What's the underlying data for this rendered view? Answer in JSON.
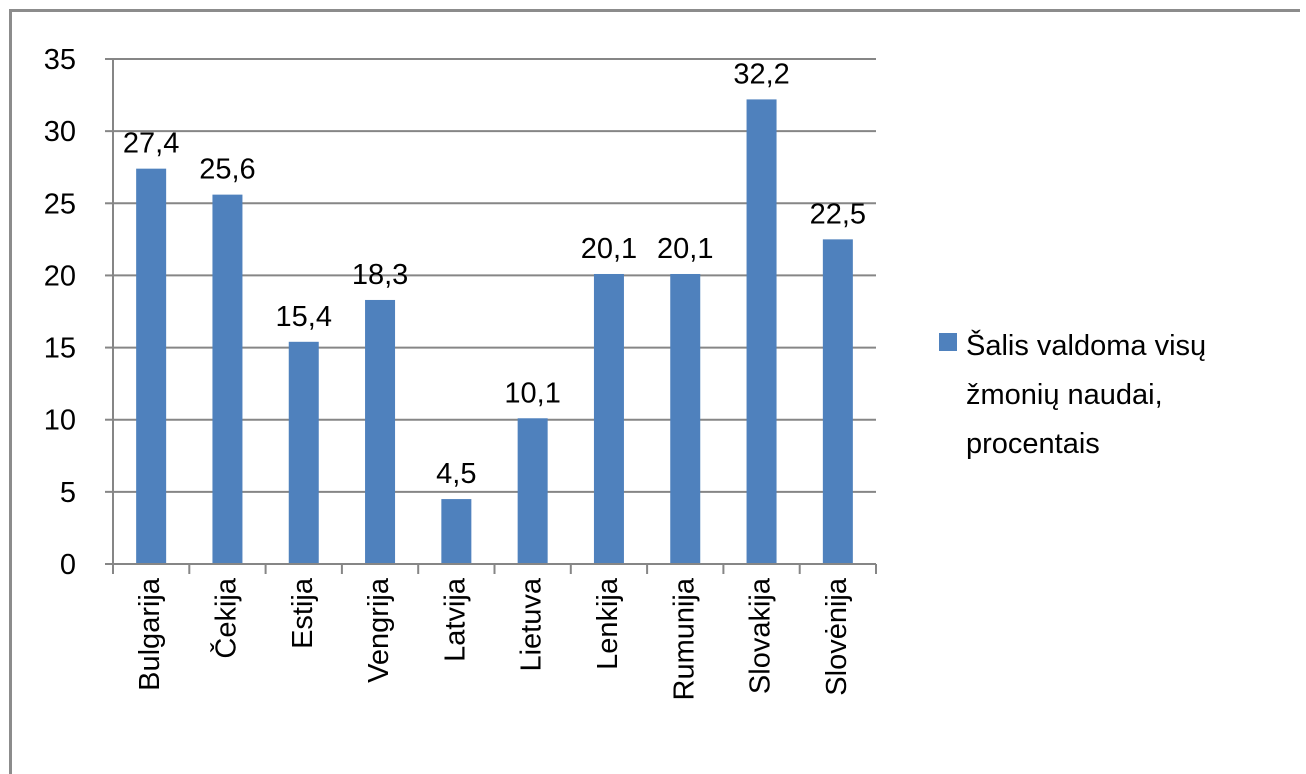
{
  "chart_data": {
    "type": "bar",
    "categories": [
      "Bulgarija",
      "Čekija",
      "Estija",
      "Vengrija",
      "Latvija",
      "Lietuva",
      "Lenkija",
      "Rumunija",
      "Slovakija",
      "Slovėnija"
    ],
    "series": [
      {
        "name": "Šalis valdoma  visų žmonių naudai, procentais",
        "values": [
          27.4,
          25.6,
          15.4,
          18.3,
          4.5,
          10.1,
          20.1,
          20.1,
          32.2,
          22.5
        ],
        "labels": [
          "27,4",
          "25,6",
          "15,4",
          "18,3",
          "4,5",
          "10,1",
          "20,1",
          "20,1",
          "32,2",
          "22,5"
        ],
        "color": "#4f81bd"
      }
    ],
    "ylim": [
      0,
      35
    ],
    "yticks": [
      "0",
      "5",
      "10",
      "15",
      "20",
      "25",
      "30",
      "35"
    ],
    "grid": true,
    "legend_position": "right"
  },
  "legend": {
    "lines": [
      "Šalis valdoma  visų",
      "žmonių naudai,",
      "procentais"
    ]
  }
}
